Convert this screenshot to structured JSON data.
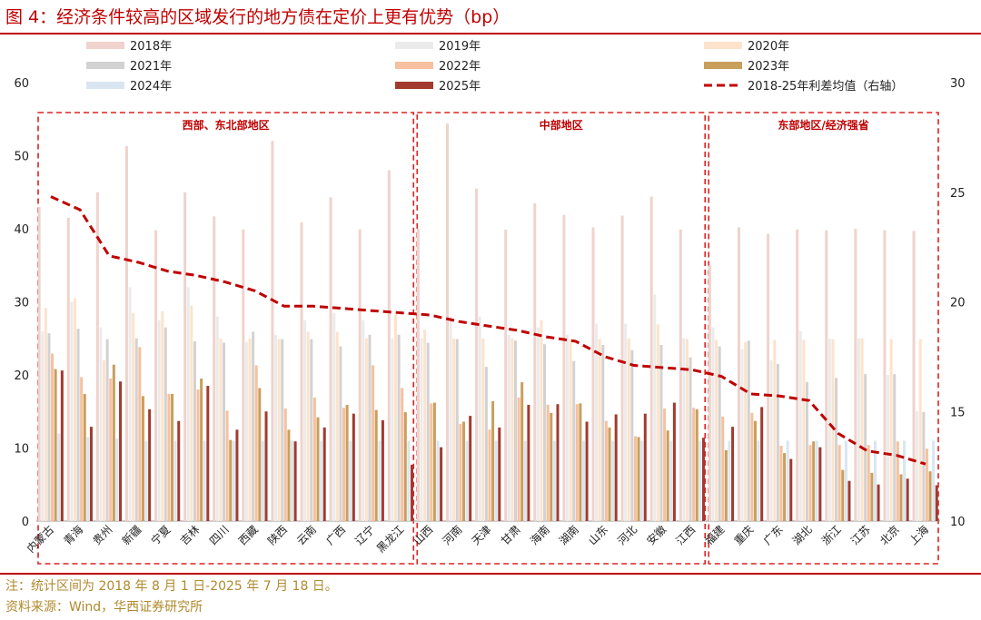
{
  "figure": {
    "title": "图 4：经济条件较高的区域发行的地方债在定价上更有优势（bp）",
    "note": "注：统计区间为 2018 年 8 月 1 日-2025 年 7 月 18 日。",
    "source": "资料来源：Wind，华西证券研究所"
  },
  "chart_data": {
    "type": "bar",
    "title": "经济条件较高的区域发行的地方债在定价上更有优势（bp）",
    "categories": [
      "内蒙古",
      "青海",
      "贵州",
      "新疆",
      "宁夏",
      "吉林",
      "四川",
      "西藏",
      "陕西",
      "云南",
      "广西",
      "辽宁",
      "黑龙江",
      "山西",
      "河南",
      "天津",
      "甘肃",
      "海南",
      "湖南",
      "山东",
      "河北",
      "安徽",
      "江西",
      "福建",
      "重庆",
      "广东",
      "湖北",
      "浙江",
      "江苏",
      "北京",
      "上海"
    ],
    "y_left": {
      "min": 0,
      "max": 60,
      "ticks": [
        0,
        10,
        20,
        30,
        40,
        50,
        60
      ]
    },
    "y_right": {
      "min": 10,
      "max": 30,
      "ticks": [
        10,
        15,
        20,
        25,
        30
      ]
    },
    "regions": [
      {
        "label": "西部、东北部地区",
        "start": 0,
        "end": 12
      },
      {
        "label": "中部地区",
        "start": 13,
        "end": 22
      },
      {
        "label": "东部地区/经济强省",
        "start": 23,
        "end": 30
      }
    ],
    "series": [
      {
        "name": "2018年",
        "color": "#efd3cc",
        "values": [
          43,
          41.5,
          45,
          51.3,
          39.8,
          45,
          41.7,
          39.9,
          52,
          40.9,
          44.3,
          39.9,
          48,
          40,
          54.4,
          45.5,
          39.9,
          43.5,
          41.9,
          40.2,
          41.8,
          44.4,
          39.9,
          35,
          40.2,
          39.3,
          39.9,
          39.8,
          40,
          39.8,
          39.7
        ]
      },
      {
        "name": "2019年",
        "color": "#ebebeb",
        "values": [
          26,
          30,
          26.5,
          32,
          27.5,
          32,
          28,
          24.5,
          25.5,
          27.5,
          28.5,
          27.5,
          25,
          25,
          28,
          28,
          25.5,
          26.5,
          25.5,
          27,
          27,
          31,
          25,
          26.5,
          23.5,
          22,
          26,
          25,
          25,
          20,
          15
        ]
      },
      {
        "name": "2020年",
        "color": "#fde3cc",
        "values": [
          29.2,
          30.5,
          22,
          28.5,
          28.7,
          29.5,
          25,
          25,
          24.9,
          25.9,
          25.9,
          25,
          28.3,
          26.2,
          25,
          25,
          25,
          27.5,
          24.9,
          24.9,
          25,
          26.9,
          24.9,
          24.8,
          24.5,
          24.8,
          24.8,
          24.9,
          25,
          24.9,
          24.9
        ]
      },
      {
        "name": "2021年",
        "color": "#d2d2d2",
        "values": [
          25.7,
          26.3,
          24.9,
          25,
          26.5,
          24.6,
          24.4,
          25.9,
          24.9,
          24.9,
          23.9,
          25.5,
          25.5,
          24.4,
          24.9,
          21.1,
          24.7,
          24.2,
          21.9,
          24.1,
          23.4,
          24.1,
          22.4,
          23.9,
          24.7,
          21.5,
          19,
          19.6,
          20.1,
          20.1,
          14.9
        ]
      },
      {
        "name": "2022年",
        "color": "#f7c09e",
        "values": [
          22.9,
          19.7,
          19.5,
          23.8,
          17.4,
          18,
          15.1,
          21.3,
          15.4,
          16.9,
          15.5,
          21.3,
          18.2,
          16.1,
          13.3,
          12.5,
          16.9,
          15.9,
          16,
          13.7,
          11.6,
          15.4,
          15.5,
          14.3,
          14.8,
          10.3,
          10.4,
          10.4,
          10.4,
          10.9,
          9.9
        ]
      },
      {
        "name": "2023年",
        "color": "#c99f5c",
        "values": [
          20.8,
          17.4,
          21.4,
          17.1,
          17.4,
          19.5,
          11.1,
          18.2,
          12.5,
          14.2,
          15.9,
          15.2,
          14.9,
          16.2,
          13.6,
          16.4,
          19,
          14.8,
          16.1,
          12.8,
          11.5,
          12.4,
          15.3,
          9.7,
          13.7,
          9.3,
          10.9,
          7,
          6.6,
          6.4,
          6.8
        ]
      },
      {
        "name": "2024年",
        "color": "#d9e6f2",
        "values": [
          12,
          11.5,
          11.3,
          11,
          11,
          11,
          11,
          11,
          11,
          11,
          11,
          11,
          11,
          11,
          11,
          11,
          11,
          11,
          11,
          11,
          11,
          11,
          11,
          11,
          11,
          11,
          11,
          11,
          11,
          11,
          11
        ]
      },
      {
        "name": "2025年",
        "color": "#a23b2e",
        "values": [
          20.6,
          12.9,
          19.1,
          15.3,
          13.7,
          18.5,
          12.5,
          15,
          10.9,
          12.8,
          14.7,
          13.8,
          7.7,
          10.1,
          14.4,
          12.8,
          15.9,
          16,
          13.6,
          14.6,
          14.7,
          16.2,
          11.4,
          12.9,
          15.6,
          8.5,
          10.1,
          5.5,
          5,
          5.8,
          4.9
        ]
      }
    ],
    "line": {
      "name": "2018-25年利差均值（右轴）",
      "color": "#c00000",
      "axis": "right",
      "values": [
        24.8,
        24.2,
        22.1,
        21.8,
        21.4,
        21.2,
        20.9,
        20.5,
        19.8,
        19.8,
        19.7,
        19.6,
        19.5,
        19.4,
        19.1,
        18.9,
        18.7,
        18.4,
        18.2,
        17.5,
        17.1,
        17.0,
        16.9,
        16.6,
        15.8,
        15.7,
        15.5,
        14.0,
        13.2,
        13.0,
        12.6
      ]
    },
    "legend": {
      "placement": "top",
      "items": [
        "2018年",
        "2019年",
        "2020年",
        "2021年",
        "2022年",
        "2023年",
        "2024年",
        "2025年",
        "2018-25年利差均值（右轴）"
      ]
    }
  }
}
